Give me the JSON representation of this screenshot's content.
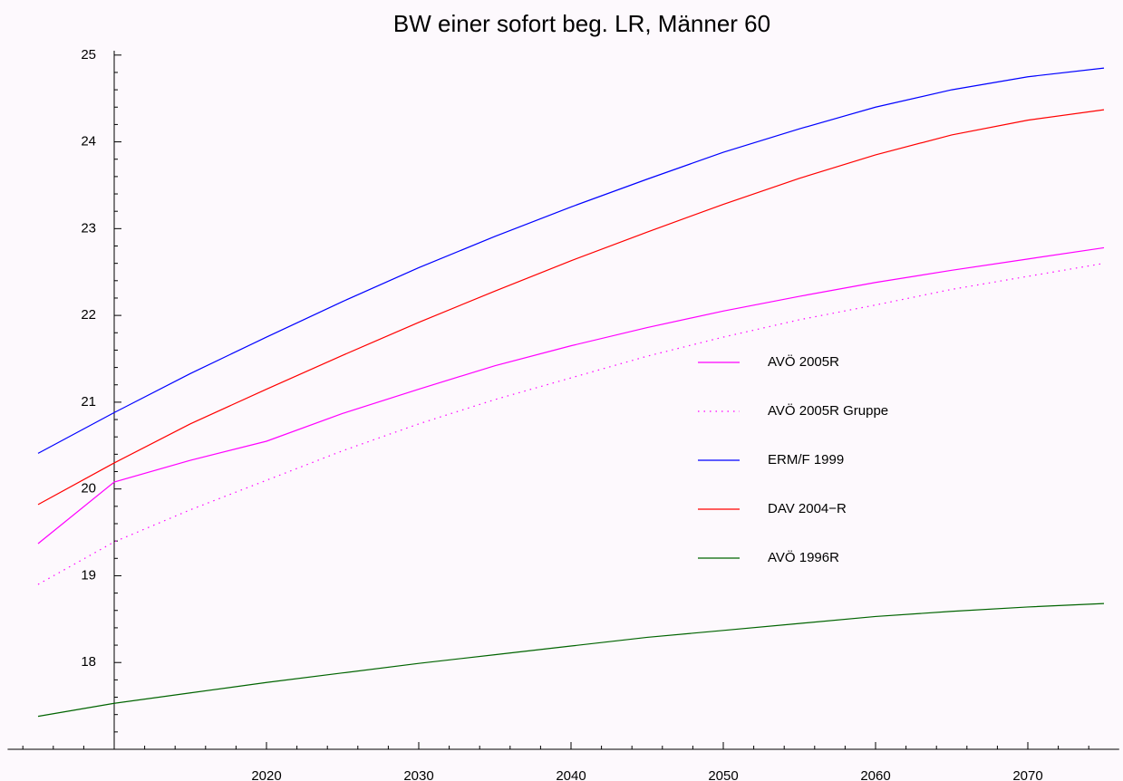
{
  "chart_data": {
    "type": "line",
    "title": "BW einer sofort beg. LR, Männer 60",
    "x": [
      2005,
      2010,
      2015,
      2020,
      2025,
      2030,
      2035,
      2040,
      2045,
      2050,
      2055,
      2060,
      2065,
      2070,
      2075
    ],
    "series": [
      {
        "name": "AVÖ 2005R",
        "color": "#ff00ff",
        "style": "solid",
        "values": [
          19.37,
          20.08,
          20.33,
          20.55,
          20.87,
          21.15,
          21.42,
          21.65,
          21.86,
          22.05,
          22.22,
          22.38,
          22.52,
          22.65,
          22.78
        ]
      },
      {
        "name": "AVÖ 2005R Gruppe",
        "color": "#ff00ff",
        "style": "dotted",
        "values": [
          18.9,
          19.39,
          19.76,
          20.1,
          20.44,
          20.75,
          21.03,
          21.28,
          21.53,
          21.75,
          21.95,
          22.12,
          22.3,
          22.45,
          22.6
        ]
      },
      {
        "name": "ERM/F 1999",
        "color": "#0000ff",
        "style": "solid",
        "values": [
          20.41,
          20.88,
          21.33,
          21.75,
          22.16,
          22.55,
          22.91,
          23.25,
          23.57,
          23.88,
          24.15,
          24.4,
          24.6,
          24.75,
          24.85
        ]
      },
      {
        "name": "DAV 2004−R",
        "color": "#ff0000",
        "style": "solid",
        "values": [
          19.82,
          20.3,
          20.75,
          21.15,
          21.54,
          21.92,
          22.28,
          22.63,
          22.96,
          23.28,
          23.58,
          23.85,
          24.08,
          24.25,
          24.37
        ]
      },
      {
        "name": "AVÖ 1996R",
        "color": "#006400",
        "style": "solid",
        "values": [
          17.38,
          17.53,
          17.65,
          17.77,
          17.88,
          17.99,
          18.09,
          18.19,
          18.29,
          18.37,
          18.45,
          18.53,
          18.59,
          18.64,
          18.68
        ]
      }
    ],
    "xlim": [
      2003,
      2076
    ],
    "ylim": [
      17,
      25.05
    ],
    "xticks": [
      2020,
      2030,
      2040,
      2050,
      2060,
      2070
    ],
    "yticks": [
      18,
      19,
      20,
      21,
      22,
      23,
      24,
      25
    ],
    "xminorticks": [
      2004,
      2006,
      2008,
      2012,
      2014,
      2016,
      2018,
      2022,
      2024,
      2026,
      2028,
      2032,
      2034,
      2036,
      2038,
      2042,
      2044,
      2046,
      2048,
      2052,
      2054,
      2056,
      2058,
      2062,
      2064,
      2066,
      2068,
      2072,
      2074
    ],
    "yminorticks": [
      17.2,
      17.4,
      17.6,
      17.8,
      18.2,
      18.4,
      18.6,
      18.8,
      19.2,
      19.4,
      19.6,
      19.8,
      20.2,
      20.4,
      20.6,
      20.8,
      21.2,
      21.4,
      21.6,
      21.8,
      22.2,
      22.4,
      22.6,
      22.8,
      23.2,
      23.4,
      23.6,
      23.8,
      24.2,
      24.4,
      24.6,
      24.8
    ],
    "axes_origin": [
      2010,
      17
    ],
    "legend": "right",
    "grid": false
  }
}
